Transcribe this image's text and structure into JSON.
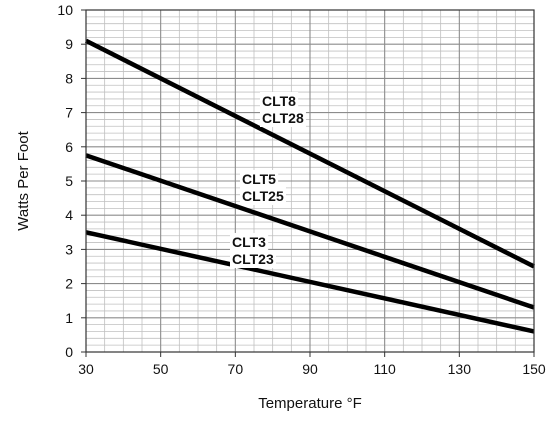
{
  "chart_data": {
    "type": "line",
    "title": "",
    "xlabel": "Temperature °F",
    "ylabel": "Watts Per Foot",
    "xlim": [
      30,
      150
    ],
    "ylim": [
      0,
      10
    ],
    "x_ticks": [
      "30",
      "50",
      "70",
      "90",
      "110",
      "130",
      "150"
    ],
    "y_ticks": [
      "0",
      "1",
      "2",
      "3",
      "4",
      "5",
      "6",
      "7",
      "8",
      "9",
      "10"
    ],
    "grid": true,
    "legend": "none",
    "colors": {
      "line": "#000000",
      "grid_major": "#8c8c8c",
      "grid_minor": "#c0c0c0"
    },
    "series": [
      {
        "labels": [
          "CLT8",
          "CLT28"
        ],
        "points": [
          [
            30,
            9.1
          ],
          [
            150,
            2.5
          ]
        ]
      },
      {
        "labels": [
          "CLT5",
          "CLT25"
        ],
        "points": [
          [
            30,
            5.75
          ],
          [
            150,
            1.3
          ]
        ]
      },
      {
        "labels": [
          "CLT3",
          "CLT23"
        ],
        "points": [
          [
            30,
            3.5
          ],
          [
            150,
            0.6
          ]
        ]
      }
    ]
  }
}
